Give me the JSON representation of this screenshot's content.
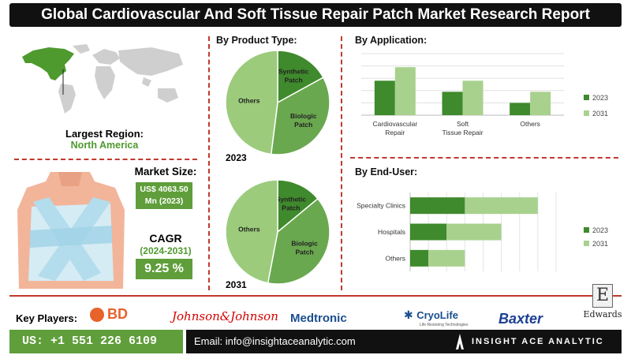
{
  "title": "Global Cardiovascular And Soft Tissue Repair Patch Market Research Report",
  "left": {
    "largest_region_label": "Largest Region:",
    "largest_region_value": "North America",
    "market_size_label": "Market Size:",
    "market_size_value_line1": "US$ 4063.50",
    "market_size_value_line2": "Mn (2023)",
    "cagr_label": "CAGR",
    "cagr_period": "(2024-2031)",
    "cagr_value": "9.25 %"
  },
  "product_type": {
    "heading": "By Product Type:",
    "year_top": "2023",
    "year_bottom": "2031"
  },
  "application_heading": "By Application:",
  "end_user_heading": "By End-User:",
  "footer": {
    "key_players_label": "Key Players:",
    "phone": "US: +1 551 226 6109",
    "email": "Email: info@insightaceanalytic.com",
    "brand": "INSIGHT ACE ANALYTIC",
    "players": [
      "BD",
      "Johnson&Johnson",
      "Medtronic",
      "CryoLife",
      "Baxter",
      "Edwards"
    ],
    "cryolife_tagline": "Life Restoring Technologies"
  },
  "colors": {
    "dark_green": "#3f8a2c",
    "mid_green": "#5f9e3a",
    "light_green": "#a9d18e",
    "pie_green": "#6aa84f",
    "accent_red": "#c0392b"
  },
  "chart_data": [
    {
      "type": "pie",
      "year": "2023",
      "labels": [
        "Synthetic Patch",
        "Biologic Patch",
        "Others"
      ],
      "values": [
        17,
        35,
        48
      ]
    },
    {
      "type": "pie",
      "year": "2031",
      "labels": [
        "Synthetic Patch",
        "Biologic Patch",
        "Others"
      ],
      "values": [
        14,
        39,
        47
      ]
    },
    {
      "type": "bar",
      "orientation": "vertical",
      "categories": [
        "Cardiovascular Repair",
        "Soft Tissue Repair",
        "Others"
      ],
      "series": [
        {
          "name": "2023",
          "values": [
            5.6,
            3.8,
            2.0
          ]
        },
        {
          "name": "2031",
          "values": [
            7.8,
            5.6,
            3.8
          ]
        }
      ],
      "ylim": [
        0,
        10
      ],
      "grid": true,
      "legend": "right"
    },
    {
      "type": "bar",
      "orientation": "horizontal",
      "categories": [
        "Specialty Clinics",
        "Hospitals",
        "Others"
      ],
      "series": [
        {
          "name": "2023",
          "values": [
            3.0,
            2.0,
            1.0
          ]
        },
        {
          "name": "2031",
          "values": [
            4.0,
            3.0,
            2.0
          ]
        }
      ],
      "stacked": true,
      "grid": true,
      "legend": "right"
    }
  ]
}
